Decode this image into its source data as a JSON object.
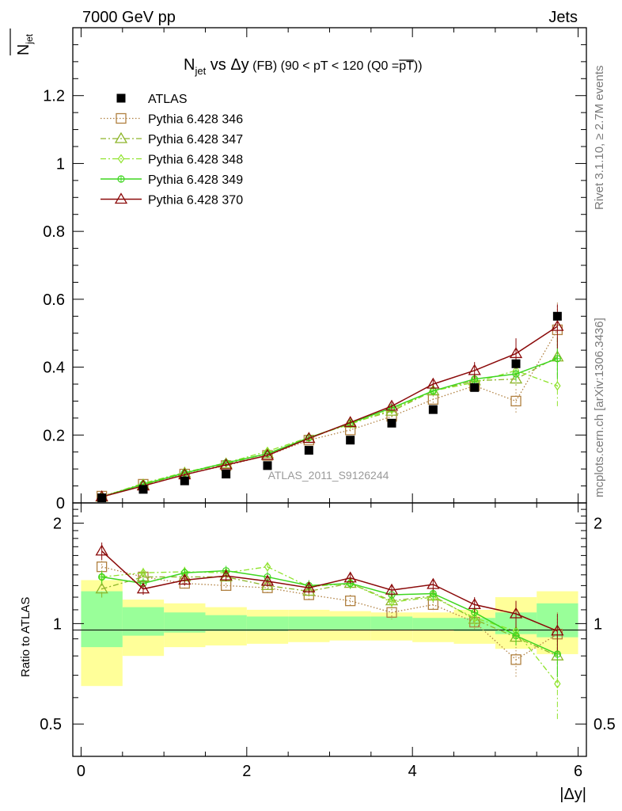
{
  "header": {
    "left": "7000 GeV pp",
    "right": "Jets"
  },
  "side_labels": {
    "rivet": "Rivet 3.1.10, ≥ 2.7M events",
    "mcplots": "mcplots.cern.ch [arXiv:1306.3436]"
  },
  "watermark": "ATLAS_2011_S9126244",
  "title": {
    "n": "N",
    "n_sub": "jet",
    "vs": " vs ",
    "dy": "Δy",
    "rest": " (FB) (90 < pT < 120 (Q0 =",
    "pt_over": "pT",
    "close": "))"
  },
  "y_axis_main": {
    "n": "N",
    "sub": "jet"
  },
  "y_axis_ratio": "Ratio to ATLAS",
  "x_axis": "|Δy|",
  "colors": {
    "atlas": "#000000",
    "p346": "#b08040",
    "p347": "#8db52a",
    "p348": "#8fe32c",
    "p349": "#3ed61f",
    "p370": "#8b0a0a",
    "band_yellow": "#ffff99",
    "band_green": "#99ff99"
  },
  "chart_data": {
    "type": "scatter",
    "x": [
      0.25,
      0.75,
      1.25,
      1.75,
      2.25,
      2.75,
      3.25,
      3.75,
      4.25,
      4.75,
      5.25,
      5.75
    ],
    "xlim": [
      -0.1,
      6.1
    ],
    "ylim_main": [
      0,
      1.4
    ],
    "ylim_ratio": [
      0.4,
      2.3
    ],
    "x_ticks": [
      "0",
      "2",
      "4",
      "6"
    ],
    "y_ticks_main": [
      "0",
      "0.2",
      "0.4",
      "0.6",
      "0.8",
      "1",
      "1.2"
    ],
    "y_ticks_ratio": [
      "0.5",
      "1",
      "2"
    ],
    "legend": [
      "ATLAS",
      "Pythia 6.428 346",
      "Pythia 6.428 347",
      "Pythia 6.428 348",
      "Pythia 6.428 349",
      "Pythia 6.428 370"
    ],
    "series": [
      {
        "name": "ATLAS",
        "marker": "square-filled",
        "color": "#000000",
        "values": [
          0.015,
          0.04,
          0.065,
          0.085,
          0.11,
          0.155,
          0.185,
          0.235,
          0.275,
          0.34,
          0.41,
          0.55
        ],
        "band_yellow": [
          [
            0.65,
            1.35
          ],
          [
            0.8,
            1.18
          ],
          [
            0.85,
            1.15
          ],
          [
            0.86,
            1.12
          ],
          [
            0.87,
            1.1
          ],
          [
            0.88,
            1.1
          ],
          [
            0.89,
            1.09
          ],
          [
            0.89,
            1.08
          ],
          [
            0.88,
            1.08
          ],
          [
            0.87,
            1.1
          ],
          [
            0.84,
            1.2
          ],
          [
            0.81,
            1.25
          ]
        ],
        "band_green": [
          [
            0.85,
            1.25
          ],
          [
            0.92,
            1.12
          ],
          [
            0.94,
            1.08
          ],
          [
            0.95,
            1.06
          ],
          [
            0.95,
            1.05
          ],
          [
            0.96,
            1.05
          ],
          [
            0.96,
            1.05
          ],
          [
            0.96,
            1.05
          ],
          [
            0.96,
            1.04
          ],
          [
            0.95,
            1.04
          ],
          [
            0.93,
            1.08
          ],
          [
            0.91,
            1.15
          ]
        ]
      },
      {
        "name": "Pythia 6.428 346",
        "marker": "square-open",
        "line": "dotted",
        "color": "#b08040",
        "values": [
          0.02,
          0.055,
          0.085,
          0.11,
          0.14,
          0.185,
          0.215,
          0.255,
          0.305,
          0.345,
          0.3,
          0.51
        ],
        "errors": [
          0.002,
          0.003,
          0.004,
          0.005,
          0.006,
          0.007,
          0.009,
          0.01,
          0.012,
          0.015,
          0.035,
          0.08
        ],
        "ratio": [
          1.48,
          1.38,
          1.32,
          1.3,
          1.28,
          1.22,
          1.17,
          1.08,
          1.14,
          1.01,
          0.78,
          0.93
        ],
        "ratio_err": [
          0.06,
          0.05,
          0.05,
          0.05,
          0.05,
          0.05,
          0.05,
          0.05,
          0.05,
          0.05,
          0.09,
          0.15
        ]
      },
      {
        "name": "Pythia 6.428 347",
        "marker": "triangle-open",
        "line": "dashdot",
        "color": "#8db52a",
        "values": [
          0.017,
          0.052,
          0.088,
          0.115,
          0.145,
          0.19,
          0.235,
          0.27,
          0.33,
          0.36,
          0.365,
          0.43
        ],
        "errors": [
          0.002,
          0.003,
          0.004,
          0.005,
          0.006,
          0.007,
          0.009,
          0.011,
          0.012,
          0.015,
          0.02,
          0.06
        ],
        "ratio": [
          1.27,
          1.38,
          1.38,
          1.38,
          1.3,
          1.25,
          1.32,
          1.17,
          1.21,
          1.03,
          0.91,
          0.8
        ],
        "ratio_err": [
          0.08,
          0.05,
          0.05,
          0.05,
          0.05,
          0.05,
          0.05,
          0.05,
          0.05,
          0.05,
          0.06,
          0.12
        ]
      },
      {
        "name": "Pythia 6.428 348",
        "marker": "diamond-open",
        "line": "dashdot",
        "color": "#8fe32c",
        "values": [
          0.018,
          0.058,
          0.09,
          0.118,
          0.152,
          0.193,
          0.232,
          0.275,
          0.33,
          0.355,
          0.39,
          0.345
        ],
        "errors": [
          0.002,
          0.003,
          0.004,
          0.005,
          0.006,
          0.007,
          0.009,
          0.011,
          0.012,
          0.015,
          0.02,
          0.06
        ],
        "ratio": [
          1.38,
          1.42,
          1.43,
          1.42,
          1.48,
          1.29,
          1.32,
          1.16,
          1.2,
          1.04,
          0.95,
          0.66
        ],
        "ratio_err": [
          0.06,
          0.05,
          0.05,
          0.05,
          0.05,
          0.05,
          0.05,
          0.05,
          0.05,
          0.05,
          0.06,
          0.15
        ]
      },
      {
        "name": "Pythia 6.428 349",
        "marker": "circle-cross",
        "line": "solid",
        "color": "#3ed61f",
        "values": [
          0.018,
          0.055,
          0.088,
          0.118,
          0.145,
          0.192,
          0.235,
          0.28,
          0.33,
          0.365,
          0.38,
          0.425
        ],
        "errors": [
          0.002,
          0.003,
          0.004,
          0.005,
          0.006,
          0.007,
          0.009,
          0.011,
          0.012,
          0.015,
          0.02,
          0.06
        ],
        "ratio": [
          1.38,
          1.32,
          1.42,
          1.44,
          1.38,
          1.3,
          1.32,
          1.22,
          1.23,
          1.08,
          0.92,
          0.81
        ],
        "ratio_err": [
          0.06,
          0.05,
          0.05,
          0.05,
          0.05,
          0.05,
          0.05,
          0.05,
          0.05,
          0.05,
          0.06,
          0.12
        ]
      },
      {
        "name": "Pythia 6.428 370",
        "marker": "triangle-open",
        "line": "solid",
        "color": "#8b0a0a",
        "values": [
          0.018,
          0.05,
          0.083,
          0.112,
          0.14,
          0.19,
          0.237,
          0.285,
          0.35,
          0.39,
          0.44,
          0.52
        ],
        "errors": [
          0.002,
          0.003,
          0.004,
          0.005,
          0.006,
          0.007,
          0.009,
          0.011,
          0.012,
          0.025,
          0.045,
          0.065
        ],
        "ratio": [
          1.65,
          1.27,
          1.35,
          1.39,
          1.34,
          1.28,
          1.37,
          1.26,
          1.31,
          1.14,
          1.07,
          0.95
        ],
        "ratio_err": [
          0.1,
          0.05,
          0.05,
          0.05,
          0.05,
          0.05,
          0.05,
          0.05,
          0.05,
          0.06,
          0.1,
          0.12
        ]
      }
    ]
  }
}
